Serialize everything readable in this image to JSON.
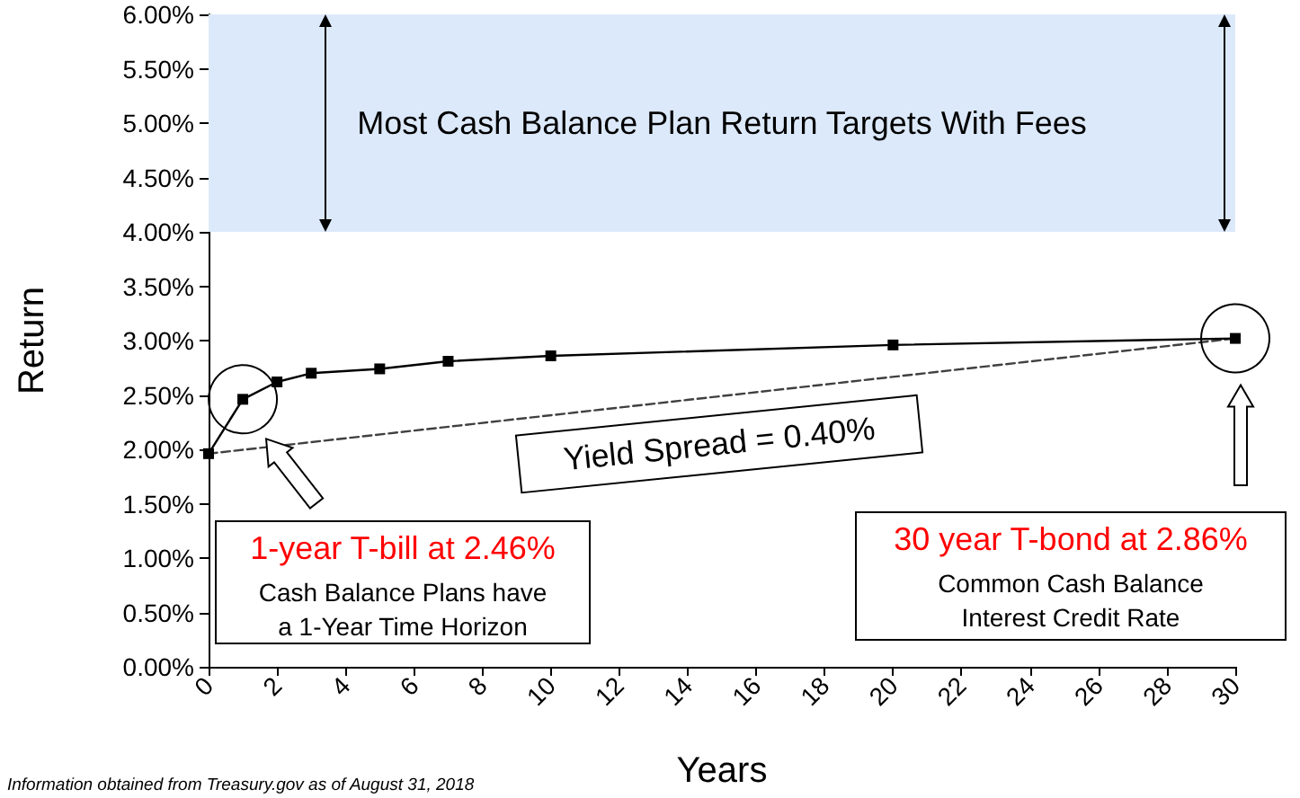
{
  "chart_data": {
    "type": "line",
    "xlabel": "Years",
    "ylabel": "Return",
    "xlim": [
      0,
      30
    ],
    "xticks": [
      0,
      2,
      4,
      6,
      8,
      10,
      12,
      14,
      16,
      18,
      20,
      22,
      24,
      26,
      28,
      30
    ],
    "ylim": [
      0,
      6
    ],
    "yticks": [
      {
        "value": 0,
        "label": "0.00%"
      },
      {
        "value": 0.5,
        "label": "0.50%"
      },
      {
        "value": 1,
        "label": "1.00%"
      },
      {
        "value": 1.5,
        "label": "1.50%"
      },
      {
        "value": 2,
        "label": "2.00%"
      },
      {
        "value": 2.5,
        "label": "2.50%"
      },
      {
        "value": 3,
        "label": "3.00%"
      },
      {
        "value": 3.5,
        "label": "3.50%"
      },
      {
        "value": 4,
        "label": "4.00%"
      },
      {
        "value": 4.5,
        "label": "4.50%"
      },
      {
        "value": 5,
        "label": "5.00%"
      },
      {
        "value": 5.5,
        "label": "5.50%"
      },
      {
        "value": 6,
        "label": "6.00%"
      }
    ],
    "series": [
      {
        "color": "#000000",
        "x": [
          0,
          1,
          2,
          3,
          5,
          7,
          10,
          20,
          30
        ],
        "values": [
          1.96,
          2.46,
          2.62,
          2.7,
          2.74,
          2.81,
          2.86,
          2.96,
          3.02
        ],
        "marker": "square",
        "line_style": "solid"
      },
      {
        "color": "#404040",
        "x": [
          0,
          30
        ],
        "values": [
          1.96,
          3.02
        ],
        "line_style": "dashed"
      }
    ],
    "bands": [
      {
        "axis": "y",
        "from": 4,
        "to": 6,
        "label": "Most Cash Balance Plan Return Targets With Fees",
        "color": "#dce9fa"
      }
    ],
    "annotations": [
      "Yield Spread = 0.40%",
      "1-year T-bill at 2.46%",
      "Cash Balance Plans have\na 1-Year Time Horizon",
      "30 year T-bond at 2.86%",
      "Common Cash Balance\nInterest Credit Rate",
      "Information obtained from Treasury.gov as of August 31, 2018"
    ],
    "grid": false
  }
}
